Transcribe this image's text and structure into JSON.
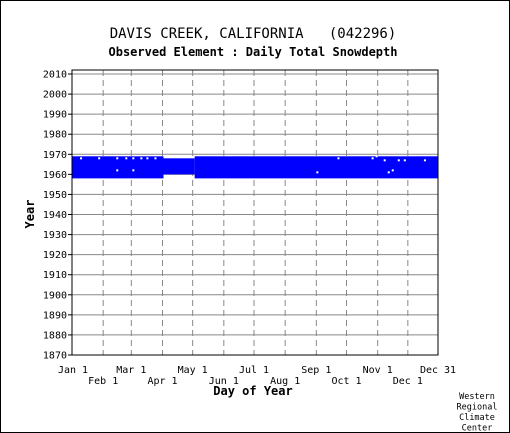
{
  "chart_data": {
    "type": "heatmap",
    "title": "DAVIS CREEK, CALIFORNIA   (042296)",
    "subtitle": "Observed Element : Daily Total Snowdepth",
    "xlabel": "Day of Year",
    "ylabel": "Year",
    "xlim": [
      1,
      365
    ],
    "ylim": [
      1870,
      2012
    ],
    "x_ticks_top": [
      {
        "label": "Jan 1",
        "day": 1
      },
      {
        "label": "Mar 1",
        "day": 60
      },
      {
        "label": "May 1",
        "day": 121
      },
      {
        "label": "Jul 1",
        "day": 182
      },
      {
        "label": "Sep 1",
        "day": 244
      },
      {
        "label": "Nov 1",
        "day": 305
      },
      {
        "label": "Dec 31",
        "day": 365
      }
    ],
    "x_ticks_bottom": [
      {
        "label": "Feb 1",
        "day": 32
      },
      {
        "label": "Apr 1",
        "day": 91
      },
      {
        "label": "Jun 1",
        "day": 152
      },
      {
        "label": "Aug 1",
        "day": 213
      },
      {
        "label": "Oct 1",
        "day": 274
      },
      {
        "label": "Dec 1",
        "day": 335
      }
    ],
    "y_ticks": [
      2010,
      2000,
      1990,
      1980,
      1970,
      1960,
      1950,
      1940,
      1930,
      1920,
      1910,
      1900,
      1890,
      1880,
      1870
    ],
    "grid": true,
    "bar_color": "#0000ff",
    "coverage": [
      {
        "day_start": 1,
        "day_end": 92,
        "year_start": 1958,
        "year_end": 1969
      },
      {
        "day_start": 92,
        "day_end": 123,
        "year_start": 1960,
        "year_end": 1968
      },
      {
        "day_start": 123,
        "day_end": 365,
        "year_start": 1958,
        "year_end": 1969
      }
    ],
    "gaps": [
      {
        "day": 10,
        "year": 1968
      },
      {
        "day": 28,
        "year": 1968
      },
      {
        "day": 46,
        "year": 1968
      },
      {
        "day": 46,
        "year": 1962
      },
      {
        "day": 55,
        "year": 1968
      },
      {
        "day": 62,
        "year": 1968
      },
      {
        "day": 62,
        "year": 1962
      },
      {
        "day": 70,
        "year": 1968
      },
      {
        "day": 76,
        "year": 1968
      },
      {
        "day": 84,
        "year": 1968
      },
      {
        "day": 245,
        "year": 1961
      },
      {
        "day": 266,
        "year": 1968
      },
      {
        "day": 300,
        "year": 1968
      },
      {
        "day": 304,
        "year": 1969
      },
      {
        "day": 312,
        "year": 1967
      },
      {
        "day": 316,
        "year": 1961
      },
      {
        "day": 320,
        "year": 1962
      },
      {
        "day": 326,
        "year": 1967
      },
      {
        "day": 332,
        "year": 1967
      },
      {
        "day": 352,
        "year": 1967
      }
    ]
  },
  "credit": {
    "lines": [
      "Western",
      "Regional",
      "Climate",
      "Center"
    ]
  }
}
